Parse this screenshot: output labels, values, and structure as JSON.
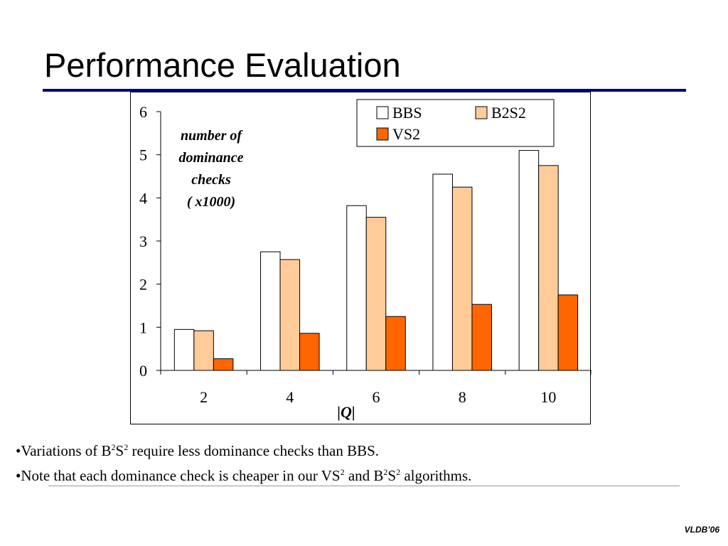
{
  "slide": {
    "title": "Performance Evaluation",
    "footer": "VLDB’06"
  },
  "bullets": [
    {
      "bullet": "•",
      "parts": [
        "Variations of B",
        "2",
        "S",
        "2",
        " require less dominance checks than BBS."
      ]
    },
    {
      "bullet": "•",
      "parts": [
        "Note that each dominance check is cheaper in our VS",
        "2",
        " and B",
        "2",
        "S",
        "2",
        " algorithms."
      ]
    }
  ],
  "colors": {
    "title_rule": "#00007f",
    "bbs": "#ffffff",
    "b2s2": "#ffcc99",
    "vs2": "#ff6600"
  },
  "chart_data": {
    "type": "bar",
    "categories": [
      "2",
      "4",
      "6",
      "8",
      "10"
    ],
    "series": [
      {
        "name": "BBS",
        "values": [
          0.95,
          2.75,
          3.82,
          4.55,
          5.1
        ]
      },
      {
        "name": "B2S2",
        "values": [
          0.92,
          2.57,
          3.55,
          4.25,
          4.75
        ]
      },
      {
        "name": "VS2",
        "values": [
          0.27,
          0.86,
          1.25,
          1.53,
          1.75
        ]
      }
    ],
    "ylabel_lines": [
      "number of",
      "dominance",
      "checks",
      "( x1000)"
    ],
    "xlabel": "|Q|",
    "ylim": [
      0,
      6
    ],
    "yticks": [
      "0",
      "1",
      "2",
      "3",
      "4",
      "5",
      "6"
    ],
    "grid": false,
    "legend_position": "top-right"
  }
}
